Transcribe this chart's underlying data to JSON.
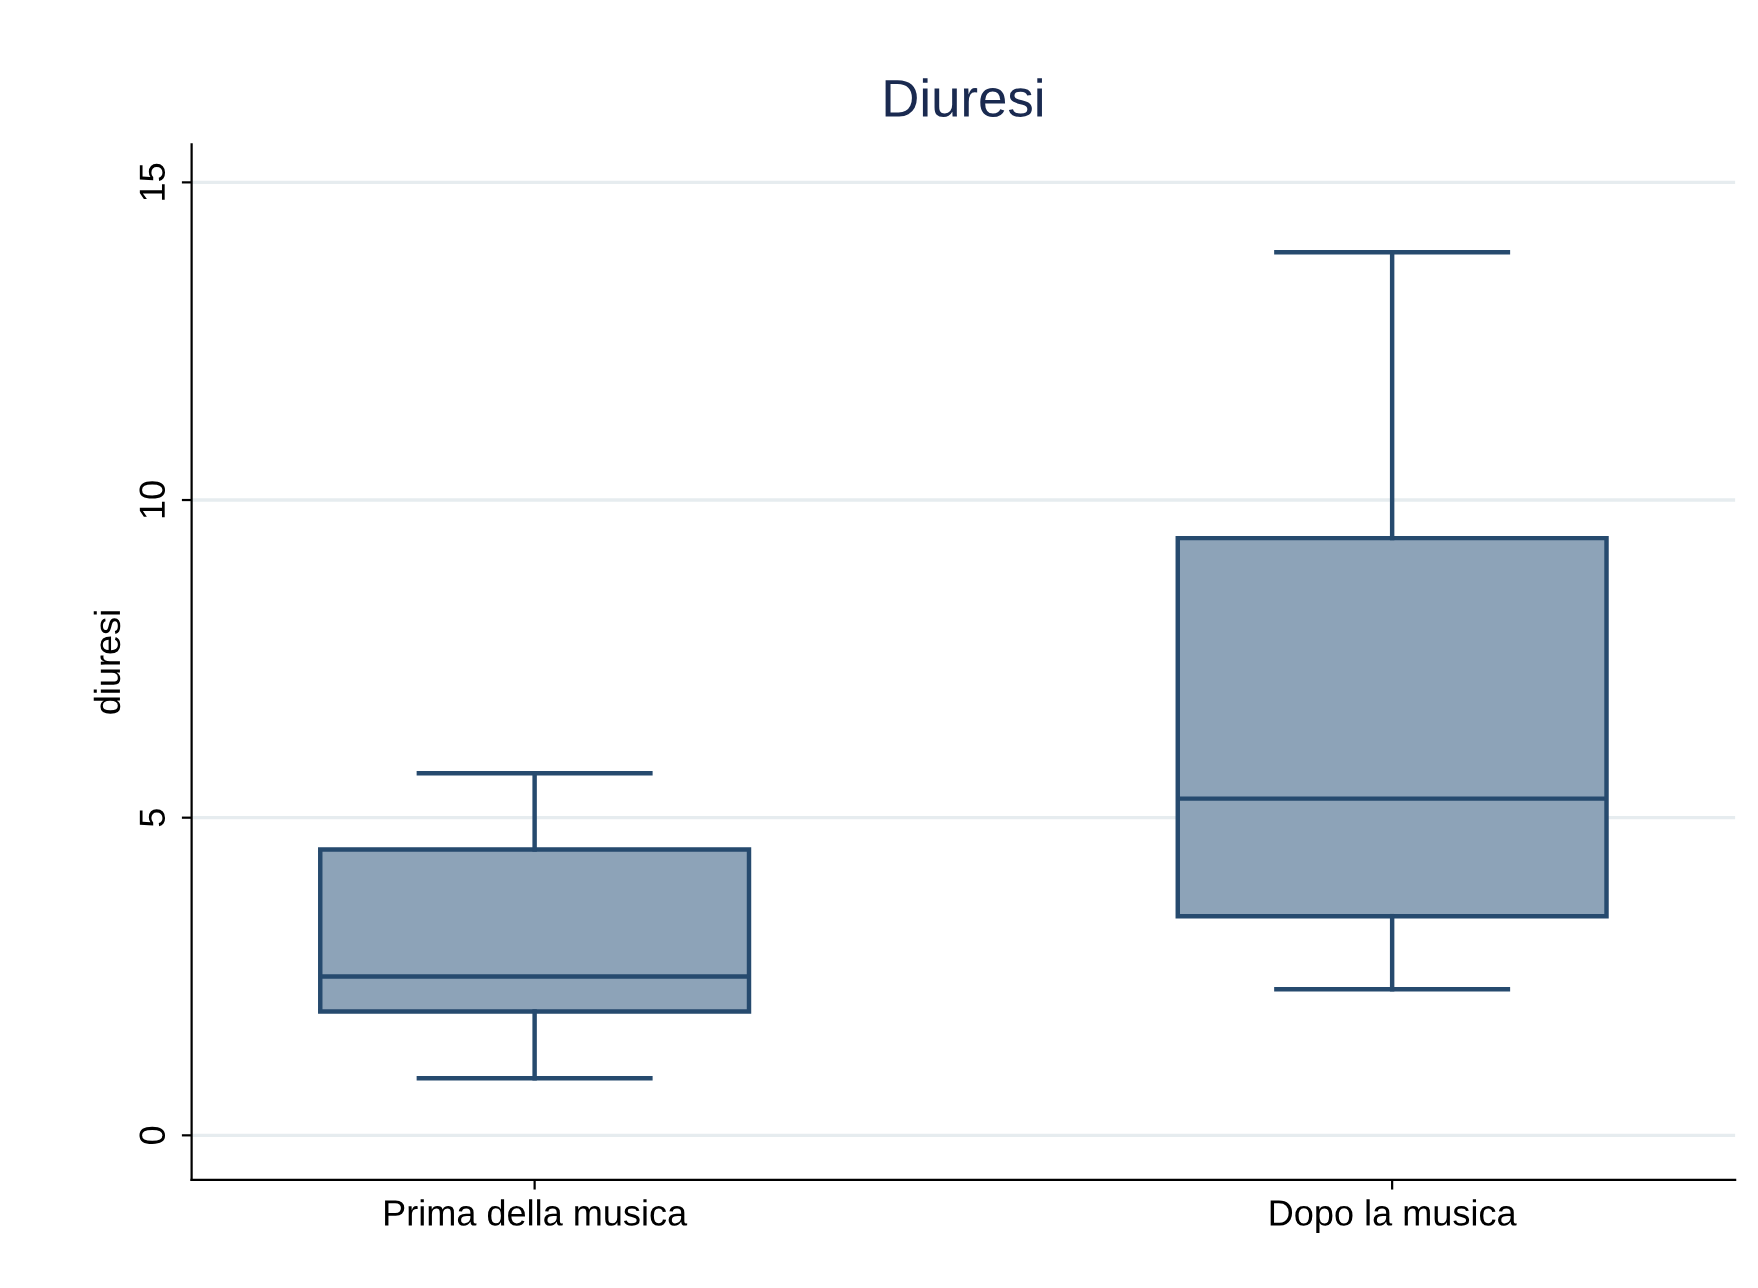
{
  "chart_data": {
    "type": "box",
    "title": "Diuresi",
    "ylabel": "diuresi",
    "categories": [
      "Prima della musica",
      "Dopo la musica"
    ],
    "boxes": [
      {
        "low": 0.9,
        "q1": 1.95,
        "median": 2.5,
        "q3": 4.5,
        "high": 5.7
      },
      {
        "low": 2.3,
        "q1": 3.45,
        "median": 5.3,
        "q3": 9.4,
        "high": 13.9
      }
    ],
    "color": "#8da3b8",
    "ylim": [
      -0.7,
      15.6
    ],
    "yticks": [
      0,
      5,
      10,
      15
    ],
    "grid": "y"
  }
}
